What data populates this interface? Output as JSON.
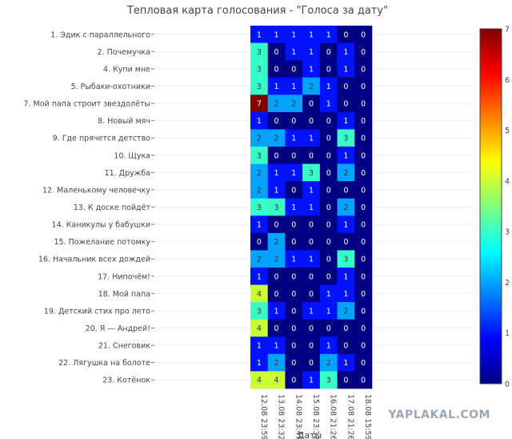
{
  "chart_data": {
    "type": "heatmap",
    "title": "Тепловая карта голосования - \"Голоса за дату\"",
    "xlabel": "Даты",
    "ylabel": "",
    "y_categories": [
      "1. Эдик с параллельного",
      "2. Почемучка",
      "4. Купи мне",
      "5. Рыбаки-охотники",
      "7. Мой папа строит звездолёты",
      "8. Новый мяч",
      "9. Где прячется детство",
      "10. Щука",
      "11. Дружба",
      "12. Маленькому человечку",
      "13. К доске пойдёт",
      "14. Каникулы у бабушки",
      "15. Пожелание потомку",
      "16. Начальник всех дождей",
      "17. Нипочём!",
      "18. Мой папа",
      "19. Детский стих про лето",
      "20. Я — Андрей!",
      "21. Снеговик",
      "22. Лягушка на болоте",
      "23. Котёнок"
    ],
    "x_categories": [
      "12.08 23:59",
      "13.08 23:32",
      "14.08 23:49",
      "15.08 23:32",
      "16.08 21:26",
      "17.08 21:26",
      "18.08 15:59"
    ],
    "z": [
      [
        1,
        1,
        1,
        1,
        1,
        0,
        0
      ],
      [
        3,
        0,
        1,
        1,
        0,
        1,
        0
      ],
      [
        3,
        0,
        0,
        1,
        0,
        1,
        0
      ],
      [
        3,
        1,
        1,
        2,
        1,
        0,
        0
      ],
      [
        7,
        2,
        2,
        0,
        1,
        0,
        0
      ],
      [
        1,
        0,
        0,
        0,
        0,
        1,
        0
      ],
      [
        2,
        2,
        1,
        1,
        0,
        3,
        0
      ],
      [
        3,
        0,
        0,
        0,
        0,
        1,
        0
      ],
      [
        2,
        1,
        1,
        3,
        0,
        2,
        0
      ],
      [
        2,
        1,
        0,
        1,
        0,
        0,
        0
      ],
      [
        3,
        3,
        1,
        1,
        0,
        2,
        0
      ],
      [
        1,
        0,
        0,
        0,
        0,
        1,
        0
      ],
      [
        0,
        2,
        0,
        0,
        0,
        0,
        0
      ],
      [
        2,
        2,
        1,
        1,
        0,
        3,
        0
      ],
      [
        1,
        0,
        0,
        0,
        0,
        1,
        0
      ],
      [
        4,
        0,
        0,
        0,
        1,
        1,
        0
      ],
      [
        3,
        1,
        0,
        1,
        1,
        2,
        0
      ],
      [
        4,
        0,
        0,
        0,
        0,
        0,
        0
      ],
      [
        1,
        1,
        0,
        0,
        1,
        0,
        0
      ],
      [
        1,
        2,
        0,
        0,
        2,
        1,
        0
      ],
      [
        4,
        4,
        0,
        1,
        3,
        0,
        0
      ]
    ],
    "zmin": 0,
    "zmax": 7,
    "colorscale": "Jet",
    "colorbar_ticks": [
      0,
      1,
      2,
      3,
      4,
      5,
      6,
      7
    ]
  },
  "watermark": "YAPLAKAL.COM",
  "colors": {
    "text": "#444444",
    "grid": "#eeeeee"
  }
}
